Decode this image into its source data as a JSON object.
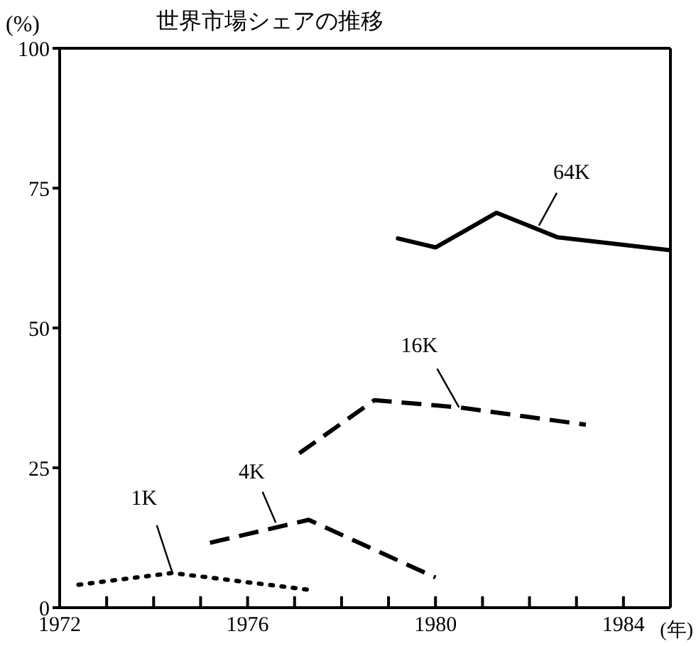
{
  "chart_data": {
    "type": "line",
    "title": "世界市場シェアの推移",
    "ylabel": "(%)",
    "xlabel": "(年)",
    "xlim": [
      1972,
      1985
    ],
    "ylim": [
      0,
      100
    ],
    "xticks": [
      1972,
      {
        "value": 1973,
        "label": null
      },
      {
        "value": 1974,
        "label": null
      },
      {
        "value": 1975,
        "label": null
      },
      1976,
      {
        "value": 1977,
        "label": null
      },
      {
        "value": 1978,
        "label": null
      },
      {
        "value": 1979,
        "label": null
      },
      1980,
      {
        "value": 1981,
        "label": null
      },
      {
        "value": 1982,
        "label": null
      },
      {
        "value": 1983,
        "label": null
      },
      1984
    ],
    "yticks": [
      0,
      25,
      50,
      75,
      100
    ],
    "marker": "none",
    "series": [
      {
        "color": "#000000",
        "line_style": "dotted",
        "x": [
          1972.4,
          1974.4,
          1977.4
        ],
        "values": [
          4.1,
          6.2,
          3.1
        ]
      },
      {
        "color": "#000000",
        "line_style": "dashed",
        "x": [
          1975.2,
          1977.3,
          1980.0
        ],
        "values": [
          11.6,
          15.7,
          5.4
        ]
      },
      {
        "color": "#000000",
        "line_style": "dashed",
        "x": [
          1977.1,
          1978.7,
          1980.5,
          1983.2
        ],
        "values": [
          27.6,
          37.1,
          35.8,
          32.7
        ]
      },
      {
        "color": "#000000",
        "line_style": "solid",
        "x": [
          1979.2,
          1980.0,
          1981.3,
          1982.6,
          1985.0
        ],
        "values": [
          66,
          64.4,
          70.6,
          66.2,
          63.9
        ]
      }
    ],
    "annotations": [
      {
        "text": "1K",
        "x": 1974.4,
        "y": 6.2
      },
      {
        "text": "4K",
        "x": 1976.6,
        "y": 15.2
      },
      {
        "text": "16K",
        "x": 1980.5,
        "y": 35.8
      },
      {
        "text": "64K",
        "x": 1982.2,
        "y": 68.3
      }
    ]
  }
}
